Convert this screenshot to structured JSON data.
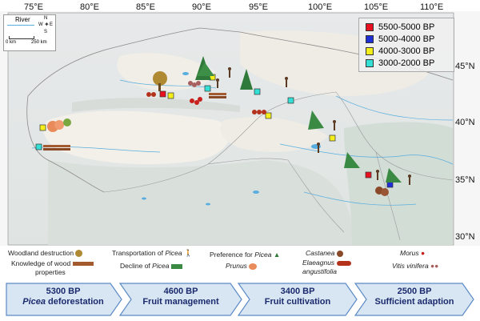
{
  "colors": {
    "red": "#e8101e",
    "blue": "#1f2fd6",
    "yellow": "#f4ee1c",
    "cyan": "#34e0d6",
    "river": "#58aede",
    "chevron_fill": "#d8e6f4",
    "chevron_stroke": "#5b8ac4"
  },
  "axes": {
    "lon_labels": [
      "75°E",
      "80°E",
      "85°E",
      "90°E",
      "95°E",
      "100°E",
      "105°E",
      "110°E"
    ],
    "lat_labels": [
      "45°N",
      "40°N",
      "35°N",
      "30°N"
    ]
  },
  "scale": {
    "river_label": "River",
    "scale_labels": [
      "0 km",
      "250 km"
    ],
    "compass": [
      "N",
      "S",
      "W",
      "E"
    ]
  },
  "age_legend": [
    {
      "label": "5500-5000 BP",
      "color": "#e8101e"
    },
    {
      "label": "5000-4000 BP",
      "color": "#1f2fd6"
    },
    {
      "label": "4000-3000 BP",
      "color": "#f4ee1c"
    },
    {
      "label": "3000-2000 BP",
      "color": "#34e0d6"
    }
  ],
  "sites": [
    {
      "color": "#34e0d6"
    },
    {
      "color": "#f4ee1c"
    },
    {
      "color": "#e8101e"
    },
    {
      "color": "#f4ee1c"
    },
    {
      "color": "#f4ee1c"
    },
    {
      "color": "#34e0d6"
    },
    {
      "color": "#34e0d6"
    },
    {
      "color": "#f4ee1c"
    },
    {
      "color": "#34e0d6"
    },
    {
      "color": "#f4ee1c"
    },
    {
      "color": "#e8101e"
    },
    {
      "color": "#1f2fd6"
    }
  ],
  "symbol_legend": {
    "woodland": "Woodland destruction",
    "knowledge": "Knowledge of wood",
    "knowledge2": "properties",
    "transport_a": "Transportation of ",
    "transport_b": "Picea",
    "decline_a": "Decline of ",
    "decline_b": "Picea",
    "pref_a": "Preference for ",
    "pref_b": "Picea",
    "prunus": "Prunus",
    "castanea": "Castanea",
    "elaeagnus": "Elaeagnus",
    "elaeagnus2": "angustifolia",
    "morus": "Morus",
    "vitis": "Vitis vinifera"
  },
  "timeline": [
    {
      "year": "5300 BP",
      "text": "Picea deforestation",
      "italic_prefix": true
    },
    {
      "year": "4600 BP",
      "text": "Fruit management",
      "italic_prefix": false
    },
    {
      "year": "3400 BP",
      "text": "Fruit cultivation",
      "italic_prefix": false
    },
    {
      "year": "2500 BP",
      "text": "Sufficient adaption",
      "italic_prefix": false
    }
  ]
}
